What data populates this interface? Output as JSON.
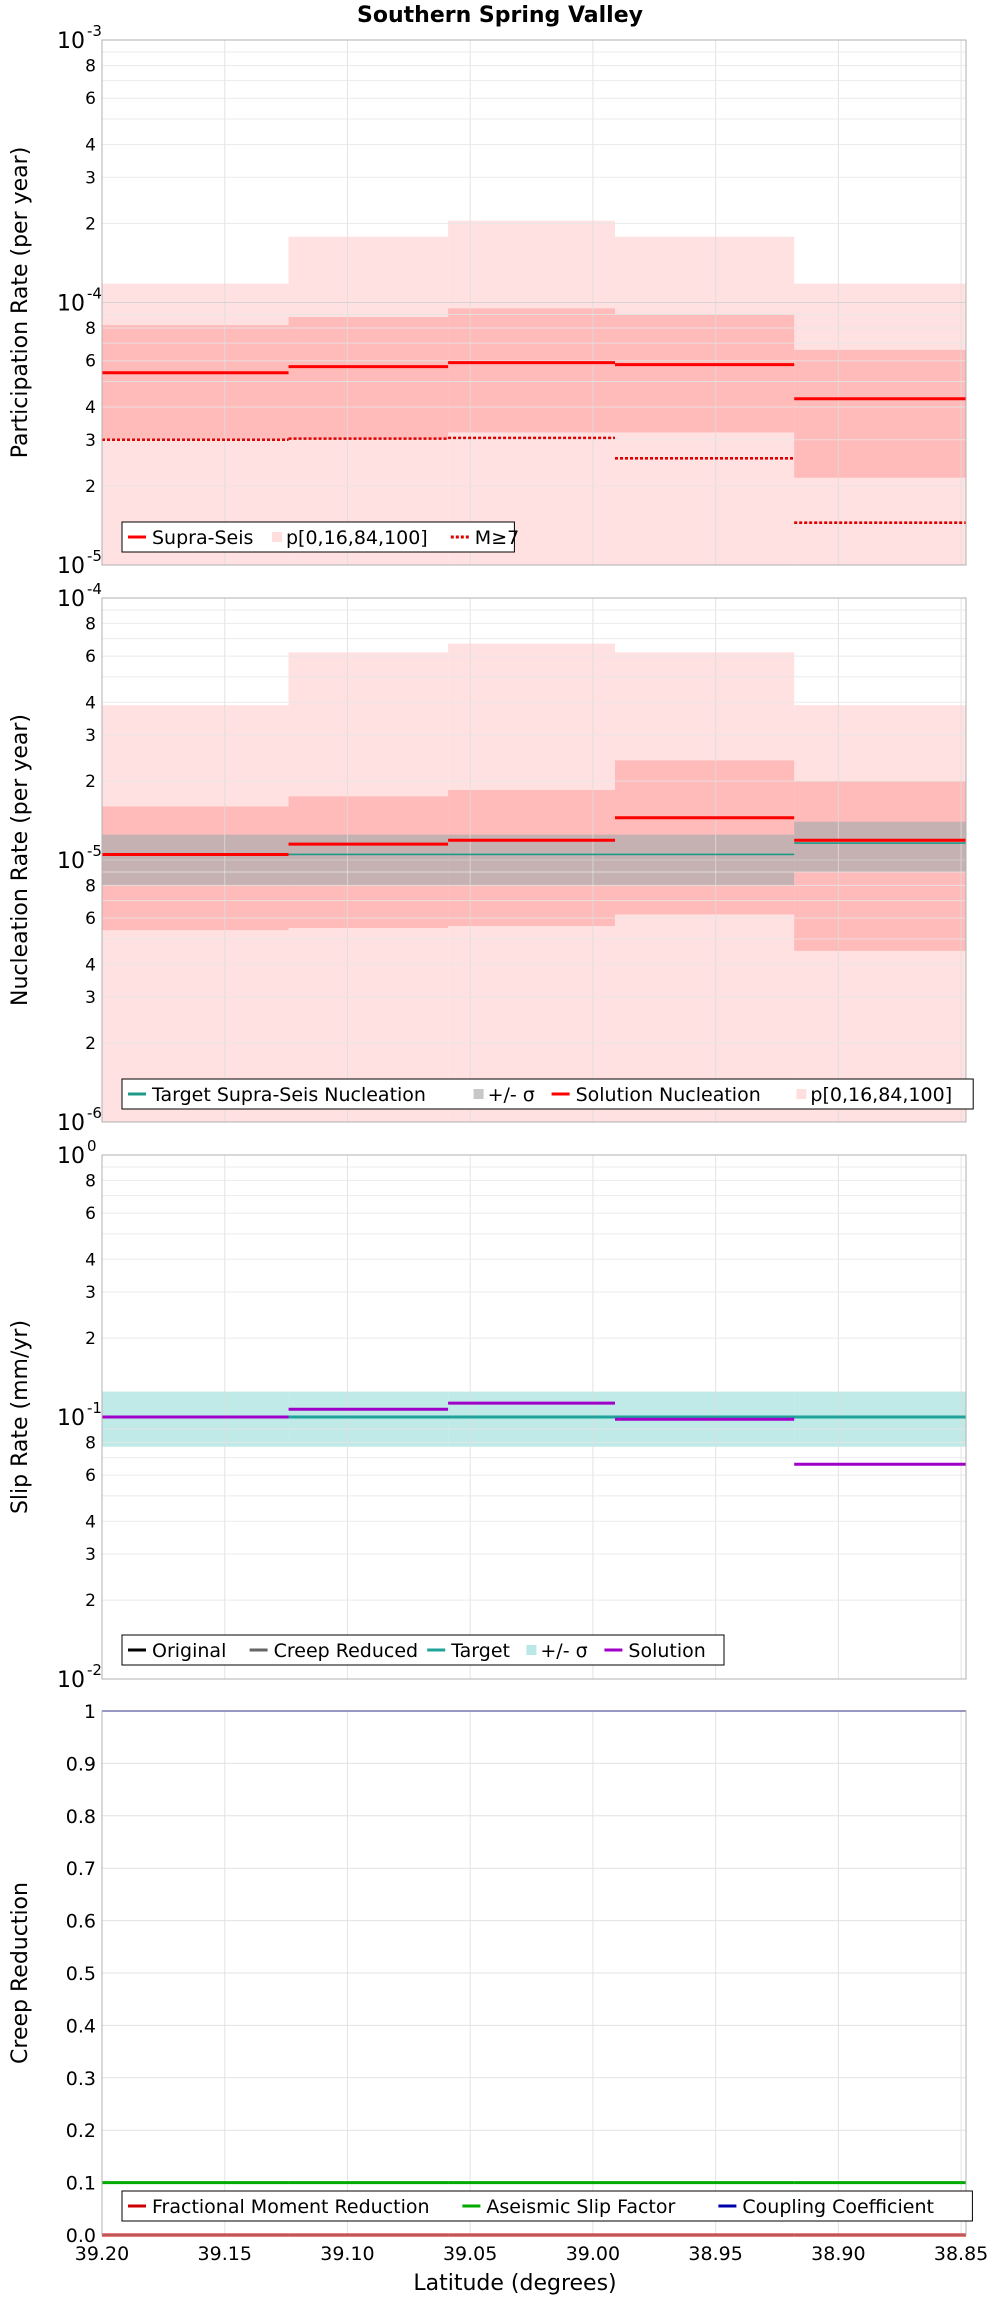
{
  "chart_data": {
    "title": "Southern Spring Valley",
    "xlabel": "Latitude (degrees)",
    "xlim": [
      39.2,
      38.848
    ],
    "x_ticks": [
      "39.20",
      "39.15",
      "39.10",
      "39.05",
      "39.00",
      "38.95",
      "38.90",
      "38.85"
    ],
    "x_tick_values": [
      39.2,
      39.15,
      39.1,
      39.05,
      39.0,
      38.95,
      38.9,
      38.85
    ],
    "grid": true,
    "x_edges": [
      39.2,
      39.124,
      39.059,
      38.991,
      38.918,
      38.848
    ],
    "panels": [
      {
        "id": "participation",
        "type": "step",
        "ylabel": "Participation Rate (per year)",
        "yscale": "log",
        "ylim": [
          1e-05,
          0.001
        ],
        "decades": [
          {
            "base": "10",
            "exp": "-5"
          },
          {
            "base": "10",
            "exp": "-4"
          },
          {
            "base": "10",
            "exp": "-3"
          }
        ],
        "minor_labels": [
          "2",
          "3",
          "4",
          "6",
          "8"
        ],
        "bands": [
          {
            "name": "p[0,16,84,100]",
            "color": "#ffdede",
            "lower": [
              1e-05,
              1e-05,
              1e-05,
              1e-05,
              1e-05
            ],
            "upper": [
              0.000118,
              0.000178,
              0.000205,
              0.000178,
              0.000118
            ]
          },
          {
            "name": "p16-84",
            "color": "#ffb6b6",
            "lower": [
              3e-05,
              3e-05,
              3.2e-05,
              3.2e-05,
              2.15e-05
            ],
            "upper": [
              8.2e-05,
              8.8e-05,
              9.5e-05,
              9e-05,
              6.6e-05
            ]
          }
        ],
        "series": [
          {
            "name": "Supra-Seis",
            "color": "#ff0000",
            "style": "solid",
            "values": [
              5.4e-05,
              5.7e-05,
              5.9e-05,
              5.8e-05,
              4.3e-05
            ]
          },
          {
            "name": "M≥7",
            "color": "#e00000",
            "style": "dotted",
            "values": [
              3e-05,
              3.03e-05,
              3.05e-05,
              2.55e-05,
              1.45e-05
            ]
          }
        ],
        "legend": [
          {
            "label": "Supra-Seis",
            "kind": "line",
            "color": "#ff0000",
            "dash": ""
          },
          {
            "label": "p[0,16,84,100]",
            "kind": "patch",
            "color": "#ffdede"
          },
          {
            "label": "M≥7",
            "kind": "line",
            "color": "#e00000",
            "dash": "3,2"
          }
        ]
      },
      {
        "id": "nucleation",
        "type": "step",
        "ylabel": "Nucleation Rate (per year)",
        "yscale": "log",
        "ylim": [
          1e-06,
          0.0001
        ],
        "decades": [
          {
            "base": "10",
            "exp": "-6"
          },
          {
            "base": "10",
            "exp": "-5"
          },
          {
            "base": "10",
            "exp": "-4"
          }
        ],
        "minor_labels": [
          "2",
          "3",
          "4",
          "6",
          "8"
        ],
        "bands": [
          {
            "name": "p[0,16,84,100]",
            "color": "#ffdede",
            "lower": [
              1e-06,
              1e-06,
              1e-06,
              1e-06,
              1e-06
            ],
            "upper": [
              3.9e-05,
              6.2e-05,
              6.7e-05,
              6.2e-05,
              3.9e-05
            ]
          },
          {
            "name": "p16-84",
            "color": "#ffb6b6",
            "lower": [
              5.4e-06,
              5.5e-06,
              5.6e-06,
              6.2e-06,
              4.5e-06
            ],
            "upper": [
              1.6e-05,
              1.75e-05,
              1.85e-05,
              2.4e-05,
              2e-05
            ]
          },
          {
            "name": "+/- σ",
            "color": "#bfb0b0",
            "lower": [
              8e-06,
              8e-06,
              8e-06,
              8e-06,
              9e-06
            ],
            "upper": [
              1.25e-05,
              1.25e-05,
              1.25e-05,
              1.25e-05,
              1.4e-05
            ]
          }
        ],
        "series": [
          {
            "name": "Target Supra-Seis Nucleation",
            "color": "#1f9a8a",
            "style": "thin",
            "values": [
              1.05e-05,
              1.05e-05,
              1.05e-05,
              1.05e-05,
              1.16e-05
            ]
          },
          {
            "name": "Solution Nucleation",
            "color": "#ff0000",
            "style": "solid",
            "values": [
              1.05e-05,
              1.15e-05,
              1.19e-05,
              1.45e-05,
              1.19e-05
            ]
          }
        ],
        "legend": [
          {
            "label": "Target Supra-Seis Nucleation",
            "kind": "line",
            "color": "#1f9a8a",
            "dash": ""
          },
          {
            "label": "+/- σ",
            "kind": "patch",
            "color": "#c8c8c8"
          },
          {
            "label": "Solution Nucleation",
            "kind": "line",
            "color": "#ff0000",
            "dash": ""
          },
          {
            "label": "p[0,16,84,100]",
            "kind": "patch",
            "color": "#ffdede"
          }
        ]
      },
      {
        "id": "slip",
        "type": "step",
        "ylabel": "Slip Rate (mm/yr)",
        "yscale": "log",
        "ylim": [
          0.01,
          1
        ],
        "decades": [
          {
            "base": "10",
            "exp": "-2"
          },
          {
            "base": "10",
            "exp": "-1"
          },
          {
            "base": "10",
            "exp": "0"
          }
        ],
        "minor_labels": [
          "2",
          "3",
          "4",
          "6",
          "8"
        ],
        "bands": [
          {
            "name": "+/- σ",
            "color": "#b9e8e6",
            "lower": [
              0.077,
              0.077,
              0.077,
              0.077,
              0.077
            ],
            "upper": [
              0.125,
              0.125,
              0.125,
              0.125,
              0.125
            ]
          }
        ],
        "series": [
          {
            "name": "Original",
            "color": "#000000",
            "style": "solid",
            "values": [
              0.1,
              0.1,
              0.1,
              0.1,
              0.1
            ]
          },
          {
            "name": "Creep Reduced",
            "color": "#666666",
            "style": "solid",
            "values": [
              0.1,
              0.1,
              0.1,
              0.1,
              0.1
            ]
          },
          {
            "name": "Target",
            "color": "#1fa39a",
            "style": "solid",
            "values": [
              0.1,
              0.1,
              0.1,
              0.1,
              0.1
            ]
          },
          {
            "name": "Solution",
            "color": "#a000c8",
            "style": "solid",
            "values": [
              0.1,
              0.107,
              0.113,
              0.098,
              0.066
            ]
          }
        ],
        "legend": [
          {
            "label": "Original",
            "kind": "line",
            "color": "#000000",
            "dash": ""
          },
          {
            "label": "Creep Reduced",
            "kind": "line",
            "color": "#666666",
            "dash": ""
          },
          {
            "label": "Target",
            "kind": "line",
            "color": "#1fa39a",
            "dash": ""
          },
          {
            "label": "+/- σ",
            "kind": "patch",
            "color": "#b9e8e6"
          },
          {
            "label": "Solution",
            "kind": "line",
            "color": "#a000c8",
            "dash": ""
          }
        ]
      },
      {
        "id": "creep",
        "type": "step",
        "ylabel": "Creep Reduction",
        "yscale": "linear",
        "ylim": [
          0,
          1
        ],
        "y_ticks": [
          "0.0",
          "0.1",
          "0.2",
          "0.3",
          "0.4",
          "0.5",
          "0.6",
          "0.7",
          "0.8",
          "0.9",
          "1"
        ],
        "y_tick_values": [
          0,
          0.1,
          0.2,
          0.3,
          0.4,
          0.5,
          0.6,
          0.7,
          0.8,
          0.9,
          1
        ],
        "bands": [],
        "series": [
          {
            "name": "Fractional Moment Reduction",
            "color": "#cc0000",
            "style": "solid",
            "values": [
              0,
              0,
              0,
              0,
              0
            ]
          },
          {
            "name": "Aseismic Slip Factor",
            "color": "#00aa00",
            "style": "solid",
            "values": [
              0.1,
              0.1,
              0.1,
              0.1,
              0.1
            ]
          },
          {
            "name": "Coupling Coefficient",
            "color": "#0000aa",
            "style": "thin",
            "values": [
              1,
              1,
              1,
              1,
              1
            ]
          }
        ],
        "legend": [
          {
            "label": "Fractional Moment Reduction",
            "kind": "line",
            "color": "#cc0000",
            "dash": ""
          },
          {
            "label": "Aseismic Slip Factor",
            "kind": "line",
            "color": "#00aa00",
            "dash": ""
          },
          {
            "label": "Coupling Coefficient",
            "kind": "line",
            "color": "#0000aa",
            "dash": ""
          }
        ]
      }
    ]
  }
}
